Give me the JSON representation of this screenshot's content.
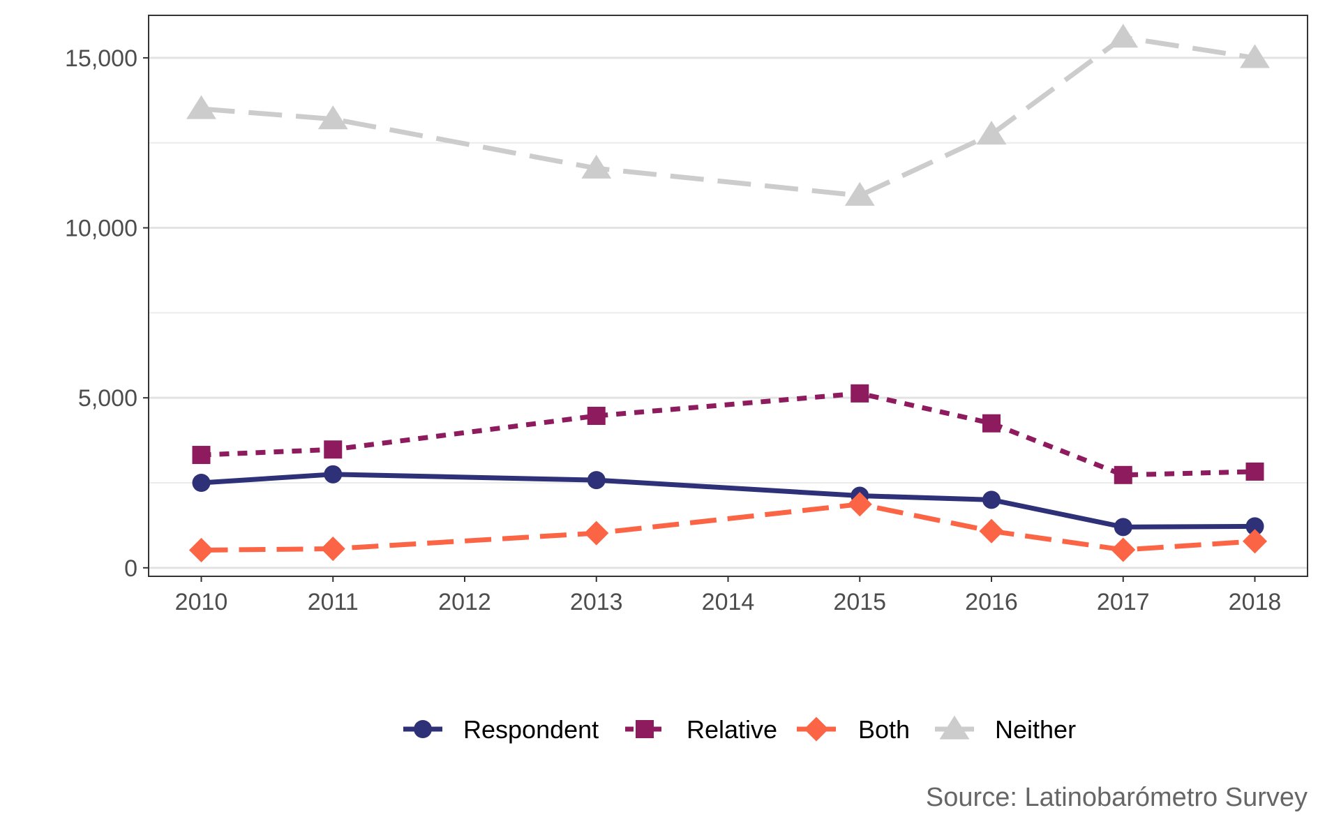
{
  "chart_data": {
    "type": "line",
    "title": "",
    "xlabel": "",
    "ylabel": "",
    "caption": "Source: Latinobarómetro Survey",
    "x": [
      2010,
      2011,
      2012,
      2013,
      2014,
      2015,
      2016,
      2017,
      2018
    ],
    "x_ticks": [
      "2010",
      "2011",
      "2012",
      "2013",
      "2014",
      "2015",
      "2016",
      "2017",
      "2018"
    ],
    "xlim": [
      2009.6,
      2018.4
    ],
    "ylim": [
      -250,
      16250
    ],
    "y_ticks": [
      0,
      5000,
      10000,
      15000
    ],
    "y_tick_labels": [
      "0",
      "5,000",
      "10,000",
      "15,000"
    ],
    "y_minor_ticks": [
      2500,
      7500,
      12500
    ],
    "grid": true,
    "legend_position": "bottom",
    "series": [
      {
        "name": "Respondent",
        "color": "#2e3177",
        "marker": "circle",
        "dash": "solid",
        "points": [
          [
            2010,
            2500
          ],
          [
            2011,
            2750
          ],
          [
            2013,
            2580
          ],
          [
            2015,
            2120
          ],
          [
            2016,
            2000
          ],
          [
            2017,
            1200
          ],
          [
            2018,
            1220
          ]
        ]
      },
      {
        "name": "Relative",
        "color": "#8e1b5e",
        "marker": "square",
        "dash": "dotted",
        "points": [
          [
            2010,
            3320
          ],
          [
            2011,
            3480
          ],
          [
            2013,
            4470
          ],
          [
            2015,
            5130
          ],
          [
            2016,
            4250
          ],
          [
            2017,
            2730
          ],
          [
            2018,
            2830
          ]
        ]
      },
      {
        "name": "Both",
        "color": "#fb6545",
        "marker": "diamond",
        "dash": "dashed",
        "points": [
          [
            2010,
            520
          ],
          [
            2011,
            560
          ],
          [
            2013,
            1020
          ],
          [
            2015,
            1870
          ],
          [
            2016,
            1080
          ],
          [
            2017,
            530
          ],
          [
            2018,
            780
          ]
        ]
      },
      {
        "name": "Neither",
        "color": "#cccccc",
        "marker": "triangle",
        "dash": "longdash",
        "points": [
          [
            2010,
            13500
          ],
          [
            2011,
            13200
          ],
          [
            2013,
            11750
          ],
          [
            2015,
            10950
          ],
          [
            2016,
            12750
          ],
          [
            2017,
            15600
          ],
          [
            2018,
            15000
          ]
        ]
      }
    ]
  }
}
